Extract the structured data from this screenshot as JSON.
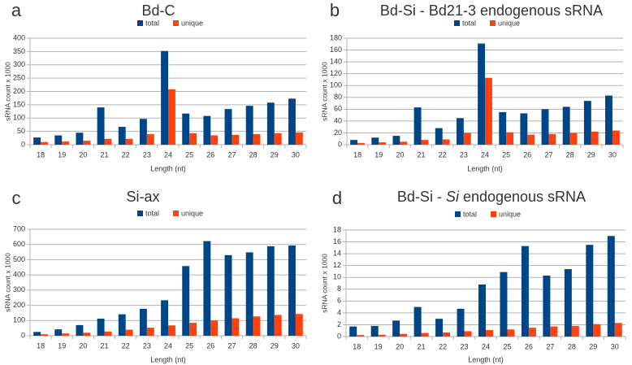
{
  "colors": {
    "total": "#004586",
    "unique": "#ff420e",
    "grid": "#b3b3b3"
  },
  "chart_data": [
    {
      "type": "bar",
      "panel_label": "a",
      "title": "Bd-C",
      "title_parts": [
        {
          "text": "Bd-C",
          "italic": false
        }
      ],
      "xlabel": "Length (nt)",
      "ylabel": "sRNA count x 1000",
      "ylim": [
        0,
        400
      ],
      "yticks": [
        0,
        50,
        100,
        150,
        200,
        250,
        300,
        350,
        400
      ],
      "grid": true,
      "legend": "top-center",
      "categories": [
        "18",
        "19",
        "20",
        "21",
        "22",
        "23",
        "24",
        "25",
        "26",
        "27",
        "28",
        "29",
        "30"
      ],
      "series": [
        {
          "name": "total",
          "values": [
            27,
            35,
            45,
            140,
            67,
            97,
            352,
            117,
            108,
            134,
            146,
            158,
            173
          ]
        },
        {
          "name": "unique",
          "values": [
            10,
            12,
            15,
            22,
            22,
            40,
            208,
            43,
            35,
            37,
            40,
            43,
            46
          ]
        }
      ]
    },
    {
      "type": "bar",
      "panel_label": "b",
      "title": "Bd-Si - Bd21-3 endogenous sRNA",
      "title_parts": [
        {
          "text": "Bd-Si - Bd21-3 endogenous sRNA",
          "italic": false
        }
      ],
      "xlabel": "Length (nt)",
      "ylabel": "sRNA count x 1000",
      "ylim": [
        0,
        180
      ],
      "yticks": [
        0,
        20,
        40,
        60,
        80,
        100,
        120,
        140,
        160,
        180
      ],
      "grid": true,
      "legend": "top-center",
      "categories": [
        "18",
        "19",
        "20",
        "21",
        "22",
        "23",
        "24",
        "25",
        "26",
        "27",
        "28",
        "29",
        "30"
      ],
      "series": [
        {
          "name": "total",
          "values": [
            8,
            12,
            15,
            63,
            28,
            45,
            171,
            55,
            53,
            60,
            64,
            74,
            83
          ]
        },
        {
          "name": "unique",
          "values": [
            3,
            4,
            5,
            8,
            9,
            20,
            113,
            21,
            17,
            18,
            20,
            22,
            24
          ]
        }
      ]
    },
    {
      "type": "bar",
      "panel_label": "c",
      "title": "Si-ax",
      "title_parts": [
        {
          "text": "Si-ax",
          "italic": false
        }
      ],
      "xlabel": "Length (nt)",
      "ylabel": "sRNA count x 1000",
      "ylim": [
        0,
        700
      ],
      "yticks": [
        0,
        100,
        200,
        300,
        400,
        500,
        600,
        700
      ],
      "grid": true,
      "legend": "top-center",
      "categories": [
        "18",
        "19",
        "20",
        "21",
        "22",
        "23",
        "24",
        "25",
        "26",
        "27",
        "28",
        "29",
        "30"
      ],
      "series": [
        {
          "name": "total",
          "values": [
            25,
            42,
            70,
            112,
            141,
            177,
            233,
            458,
            622,
            530,
            548,
            588,
            593
          ]
        },
        {
          "name": "unique",
          "values": [
            10,
            15,
            20,
            28,
            40,
            53,
            68,
            85,
            100,
            115,
            127,
            137,
            143
          ]
        }
      ]
    },
    {
      "type": "bar",
      "panel_label": "d",
      "title": "Bd-Si - Si endogenous sRNA",
      "title_parts": [
        {
          "text": "Bd-Si - ",
          "italic": false
        },
        {
          "text": "Si",
          "italic": true
        },
        {
          "text": " endogenous sRNA",
          "italic": false
        }
      ],
      "xlabel": "Length (nt)",
      "ylabel": "sRNA count x 1000",
      "ylim": [
        0,
        18
      ],
      "yticks": [
        0,
        2,
        4,
        6,
        8,
        10,
        12,
        14,
        16,
        18
      ],
      "grid": true,
      "legend": "top-center",
      "categories": [
        "18",
        "19",
        "20",
        "21",
        "22",
        "23",
        "24",
        "25",
        "26",
        "27",
        "28",
        "29",
        "30"
      ],
      "series": [
        {
          "name": "total",
          "values": [
            1.7,
            1.8,
            2.7,
            5.0,
            3.0,
            4.7,
            8.8,
            10.9,
            15.3,
            10.3,
            11.4,
            15.5,
            17.0
          ]
        },
        {
          "name": "unique",
          "values": [
            0.25,
            0.3,
            0.45,
            0.6,
            0.7,
            0.9,
            1.1,
            1.2,
            1.5,
            1.7,
            1.8,
            2.1,
            2.3
          ]
        }
      ]
    }
  ]
}
